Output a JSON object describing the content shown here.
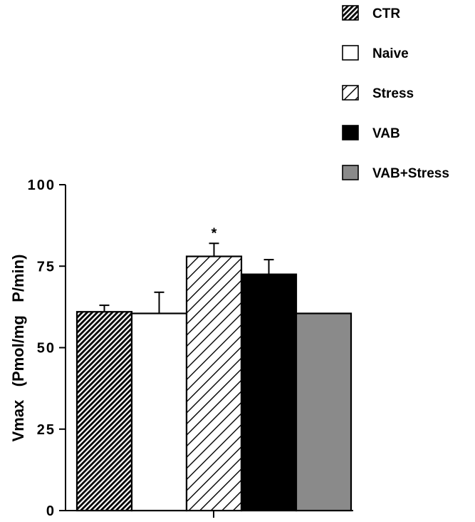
{
  "chart_data": {
    "type": "bar",
    "title": "",
    "xlabel": "",
    "ylabel": "Vmax   (Pmol/mg   P/min)",
    "ylim": [
      0,
      100
    ],
    "yticks": [
      0,
      25,
      50,
      75,
      100
    ],
    "ytick_labels": [
      "0",
      "25",
      "50",
      "75",
      "100"
    ],
    "grid": false,
    "legend_position": "top-right",
    "series": [
      {
        "name": "CTR",
        "value": 61,
        "error": 2,
        "fill": "hatch-dense",
        "color": "#000000",
        "annotation": ""
      },
      {
        "name": "Naive",
        "value": 60.5,
        "error": 6.5,
        "fill": "white",
        "color": "#ffffff",
        "annotation": ""
      },
      {
        "name": "Stress",
        "value": 78,
        "error": 4,
        "fill": "hatch-sparse",
        "color": "#000000",
        "annotation": "*"
      },
      {
        "name": "VAB",
        "value": 72.5,
        "error": 4.5,
        "fill": "solid",
        "color": "#000000",
        "annotation": ""
      },
      {
        "name": "VAB+Stress",
        "value": 60.5,
        "error": 0,
        "fill": "solid",
        "color": "#8a8a8a",
        "annotation": ""
      }
    ]
  }
}
